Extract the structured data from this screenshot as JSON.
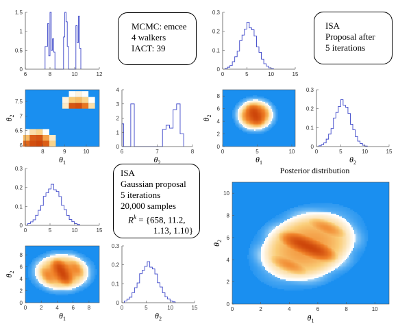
{
  "boxes": {
    "mcmc": {
      "lines": [
        "MCMC: emcee",
        "4 walkers",
        "IACT: 39"
      ]
    },
    "isa_after": {
      "lines": [
        "ISA",
        "Proposal after",
        "5 iterations"
      ]
    },
    "isa_gauss": {
      "lines": [
        "ISA",
        "Gaussian proposal",
        "5 iterations",
        "20,000 samples"
      ],
      "rk_prefix": "R",
      "rk_sup": "k",
      "rk_line1": " = {658, 11.2,",
      "rk_line2": "1.13, 1.10}"
    }
  },
  "posterior_title": "Posterior distribution",
  "colors": {
    "background_blue": "#1a8ff0",
    "hist_line": "#3a44c8",
    "hot": "#d2460a",
    "axis": "#555555"
  },
  "chart_data": [
    {
      "id": "mcmc-theta1-hist",
      "type": "histogram",
      "xlim": [
        6,
        12
      ],
      "ylim": [
        0,
        1.5
      ],
      "xticks": [
        6,
        8,
        10,
        12
      ],
      "yticks": [
        0,
        0.5,
        1,
        1.5
      ],
      "xticklabels": [
        "6",
        "8",
        "10",
        "12"
      ],
      "yticklabels": [
        "0",
        "0.5",
        "1",
        "1.5"
      ],
      "bin_edges": [
        7.6,
        7.8,
        7.9,
        8.0,
        8.1,
        8.2,
        8.3,
        8.4,
        9.1,
        9.2,
        9.3,
        9.4,
        9.5,
        10.1,
        10.2,
        10.3,
        10.4,
        10.5
      ],
      "heights": [
        0.6,
        1.2,
        0.35,
        1.5,
        0.5,
        0.8,
        0.45,
        0,
        0.85,
        1.5,
        1.25,
        0.6,
        0,
        1.15,
        0.7,
        1.4,
        0.55
      ]
    },
    {
      "id": "mcmc-joint",
      "type": "heatmap",
      "xlim": [
        7.2,
        10.6
      ],
      "ylim": [
        5.95,
        7.9
      ],
      "xticks": [
        8,
        9,
        10
      ],
      "yticks": [
        6,
        6.5,
        7,
        7.5
      ],
      "xticklabels": [
        "8",
        "9",
        "10"
      ],
      "yticklabels": [
        "6",
        "6.5",
        "7",
        "7.5"
      ],
      "xlabel": "θ1",
      "ylabel": "θ2",
      "clusters": [
        {
          "x": [
            7.25,
            7.55,
            7.85,
            8.15,
            8.45,
            7.25,
            7.55,
            7.85,
            8.15,
            8.45,
            7.25,
            7.55,
            7.85,
            8.15
          ],
          "y": [
            6.05,
            6.05,
            6.05,
            6.05,
            6.05,
            6.25,
            6.25,
            6.25,
            6.25,
            6.25,
            6.45,
            6.45,
            6.45,
            6.45
          ],
          "v": [
            0.8,
            0.95,
            1.0,
            0.85,
            0.3,
            0.4,
            0.85,
            0.9,
            0.5,
            0.2,
            0.1,
            0.25,
            0.3,
            0.1
          ]
        },
        {
          "x": [
            9.05,
            9.35,
            9.65,
            9.95,
            10.25,
            9.05,
            9.35,
            9.65,
            9.95,
            10.25,
            9.35,
            9.65,
            9.95
          ],
          "y": [
            7.35,
            7.35,
            7.35,
            7.35,
            7.35,
            7.55,
            7.55,
            7.55,
            7.55,
            7.55,
            7.75,
            7.75,
            7.75
          ],
          "v": [
            0.2,
            0.9,
            0.95,
            0.7,
            0.25,
            0.15,
            0.35,
            0.4,
            0.3,
            0.1,
            0.1,
            0.15,
            0.1
          ]
        }
      ]
    },
    {
      "id": "mcmc-theta2-hist",
      "type": "histogram",
      "xlim": [
        6,
        8
      ],
      "ylim": [
        0,
        4
      ],
      "xticks": [
        6,
        7,
        8
      ],
      "yticks": [
        0,
        1,
        2,
        3,
        4
      ],
      "xticklabels": [
        "6",
        "7",
        "8"
      ],
      "yticklabels": [
        "0",
        "1",
        "2",
        "3",
        "4"
      ],
      "xlabel": "θ2",
      "bin_edges": [
        6.0,
        6.05,
        6.25,
        6.35,
        6.45,
        7.15,
        7.25,
        7.35,
        7.45,
        7.55,
        7.65,
        7.75
      ],
      "heights": [
        1.6,
        0,
        3.0,
        0,
        0,
        1.2,
        1.5,
        1.3,
        2.6,
        3.0,
        0.9
      ]
    },
    {
      "id": "isa-after-theta1-hist",
      "type": "histogram",
      "xlim": [
        0,
        15
      ],
      "ylim": [
        0,
        0.3
      ],
      "xticks": [
        0,
        5,
        10,
        15
      ],
      "yticks": [
        0,
        0.1,
        0.2,
        0.3
      ],
      "xticklabels": [
        "0",
        "5",
        "10",
        "15"
      ],
      "yticklabels": [
        "0",
        "0.1",
        "0.2",
        "0.3"
      ],
      "mean": 5.4,
      "sd": 1.65,
      "peak": 0.235,
      "range": [
        0.5,
        10.5
      ]
    },
    {
      "id": "isa-after-joint",
      "type": "heatmap",
      "xlim": [
        0,
        10.5
      ],
      "ylim": [
        0,
        9
      ],
      "xticks": [
        0,
        5,
        10
      ],
      "yticks": [
        0,
        2,
        4,
        6,
        8
      ],
      "xticklabels": [
        "0",
        "5",
        "10"
      ],
      "yticklabels": [
        "0",
        "2",
        "4",
        "6",
        "8"
      ],
      "xlabel": "θ1",
      "ylabel": "θ2",
      "center": [
        4.7,
        5.0
      ],
      "radius": [
        2.6,
        2.4
      ],
      "stripes": 0.25
    },
    {
      "id": "isa-after-theta2-hist",
      "type": "histogram",
      "xlim": [
        0,
        15
      ],
      "ylim": [
        0,
        0.3
      ],
      "xticks": [
        0,
        5,
        10,
        15
      ],
      "yticks": [
        0,
        0.1,
        0.2,
        0.3
      ],
      "xticklabels": [
        "0",
        "5",
        "10",
        "15"
      ],
      "yticklabels": [
        "0",
        "0.1",
        "0.2",
        "0.3"
      ],
      "xlabel": "θ2",
      "mean": 5.4,
      "sd": 1.65,
      "peak": 0.235,
      "range": [
        0.5,
        10.5
      ]
    },
    {
      "id": "isa-gauss-theta1-hist",
      "type": "histogram",
      "xlim": [
        0,
        15
      ],
      "ylim": [
        0,
        0.3
      ],
      "xticks": [
        0,
        5,
        10,
        15
      ],
      "yticks": [
        0,
        0.1,
        0.2,
        0.3
      ],
      "xticklabels": [
        "0",
        "5",
        "10",
        "15"
      ],
      "yticklabels": [
        "0",
        "0.1",
        "0.2",
        "0.3"
      ],
      "mean": 5.5,
      "sd": 1.9,
      "peak": 0.205,
      "range": [
        0.5,
        11
      ]
    },
    {
      "id": "isa-gauss-joint",
      "type": "heatmap",
      "xlim": [
        0,
        9.3
      ],
      "ylim": [
        0,
        9.5
      ],
      "xticks": [
        0,
        2,
        4,
        6,
        8
      ],
      "yticks": [
        0,
        2,
        4,
        6,
        8
      ],
      "xticklabels": [
        "0",
        "2",
        "4",
        "6",
        "8"
      ],
      "yticklabels": [
        "0",
        "2",
        "4",
        "6",
        "8"
      ],
      "xlabel": "θ1",
      "ylabel": "θ2",
      "center": [
        4.6,
        5.1
      ],
      "radius": [
        3.4,
        3.0
      ],
      "stripes": 0.55
    },
    {
      "id": "isa-gauss-theta2-hist",
      "type": "histogram",
      "xlim": [
        0,
        15
      ],
      "ylim": [
        0,
        0.3
      ],
      "xticks": [
        0,
        5,
        10,
        15
      ],
      "yticks": [
        0,
        0.1,
        0.2,
        0.3
      ],
      "xticklabels": [
        "0",
        "5",
        "10",
        "15"
      ],
      "yticklabels": [
        "0",
        "0.1",
        "0.2",
        "0.3"
      ],
      "xlabel": "θ2",
      "mean": 5.5,
      "sd": 1.9,
      "peak": 0.205,
      "range": [
        0.5,
        11
      ]
    },
    {
      "id": "posterior",
      "type": "heatmap",
      "title": "Posterior distribution",
      "xlim": [
        0,
        11
      ],
      "ylim": [
        0,
        11
      ],
      "xticks": [
        0,
        2,
        4,
        6,
        8,
        10
      ],
      "yticks": [
        0,
        2,
        4,
        6,
        8,
        10
      ],
      "xticklabels": [
        "0",
        "2",
        "4",
        "6",
        "8",
        "10"
      ],
      "yticklabels": [
        "0",
        "2",
        "4",
        "6",
        "8",
        "10"
      ],
      "xlabel": "θ1",
      "ylabel": "θ2",
      "center": [
        5.3,
        5.2
      ],
      "radius": [
        3.6,
        2.8
      ],
      "rotation_deg": -38,
      "stripes": 1.0
    }
  ]
}
